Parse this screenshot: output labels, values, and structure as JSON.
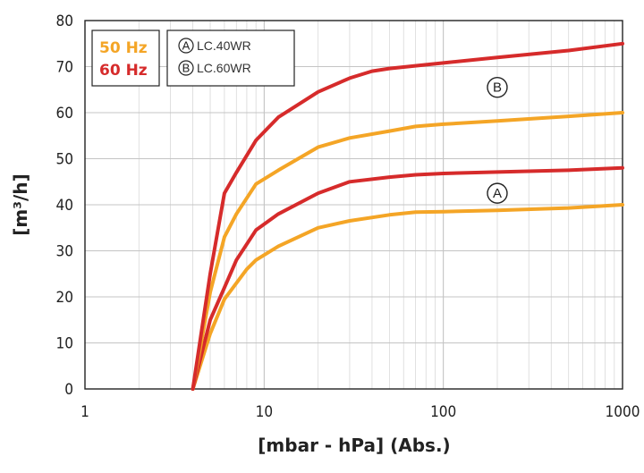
{
  "chart_data": {
    "type": "line",
    "xscale": "log",
    "xlim": [
      1,
      1000
    ],
    "ylim": [
      0,
      80
    ],
    "grid": true,
    "x_ticks": [
      "1",
      "10",
      "100",
      "1000"
    ],
    "y_ticks": [
      "0",
      "10",
      "20",
      "30",
      "40",
      "50",
      "60",
      "70",
      "80"
    ],
    "xlabel": "[mbar - hPa] (Abs.)",
    "ylabel": "[m³/h]",
    "frequency_legend": {
      "position": "top-left",
      "items": [
        {
          "label": "50 Hz",
          "color": "#f4a526"
        },
        {
          "label": "60 Hz",
          "color": "#d62b2b"
        }
      ]
    },
    "model_legend": {
      "position": "top-left",
      "items": [
        {
          "marker": "A",
          "label": "LC.40WR"
        },
        {
          "marker": "B",
          "label": "LC.60WR"
        }
      ]
    },
    "curve_markers": [
      {
        "marker": "A",
        "x": 200,
        "y": 42.5
      },
      {
        "marker": "B",
        "x": 200,
        "y": 65.5
      }
    ],
    "series": [
      {
        "model": "A",
        "frequency": "50 Hz",
        "color": "#f4a526",
        "points": [
          [
            4,
            0
          ],
          [
            5,
            12
          ],
          [
            6,
            19.5
          ],
          [
            8,
            26
          ],
          [
            9,
            28
          ],
          [
            12,
            31
          ],
          [
            20,
            35
          ],
          [
            30,
            36.5
          ],
          [
            50,
            37.8
          ],
          [
            70,
            38.4
          ],
          [
            100,
            38.5
          ],
          [
            200,
            38.8
          ],
          [
            500,
            39.3
          ],
          [
            1000,
            40
          ]
        ]
      },
      {
        "model": "A",
        "frequency": "60 Hz",
        "color": "#d62b2b",
        "points": [
          [
            4,
            0
          ],
          [
            5,
            15
          ],
          [
            6,
            22
          ],
          [
            7,
            28
          ],
          [
            9,
            34.5
          ],
          [
            12,
            38
          ],
          [
            20,
            42.5
          ],
          [
            30,
            45
          ],
          [
            50,
            46
          ],
          [
            70,
            46.5
          ],
          [
            100,
            46.8
          ],
          [
            200,
            47.1
          ],
          [
            500,
            47.5
          ],
          [
            1000,
            48
          ]
        ]
      },
      {
        "model": "B",
        "frequency": "50 Hz",
        "color": "#f4a526",
        "points": [
          [
            4,
            0
          ],
          [
            5,
            21
          ],
          [
            6,
            33
          ],
          [
            7,
            38
          ],
          [
            9,
            44.5
          ],
          [
            12,
            47.5
          ],
          [
            20,
            52.5
          ],
          [
            30,
            54.5
          ],
          [
            50,
            56
          ],
          [
            70,
            57
          ],
          [
            100,
            57.5
          ],
          [
            200,
            58.2
          ],
          [
            500,
            59.2
          ],
          [
            1000,
            60
          ]
        ]
      },
      {
        "model": "B",
        "frequency": "60 Hz",
        "color": "#d62b2b",
        "points": [
          [
            4,
            0
          ],
          [
            5,
            25
          ],
          [
            6,
            42.5
          ],
          [
            7,
            47
          ],
          [
            9,
            54
          ],
          [
            12,
            59
          ],
          [
            20,
            64.5
          ],
          [
            30,
            67.5
          ],
          [
            40,
            69
          ],
          [
            50,
            69.6
          ],
          [
            100,
            70.8
          ],
          [
            200,
            72
          ],
          [
            500,
            73.5
          ],
          [
            1000,
            75
          ]
        ]
      }
    ]
  }
}
